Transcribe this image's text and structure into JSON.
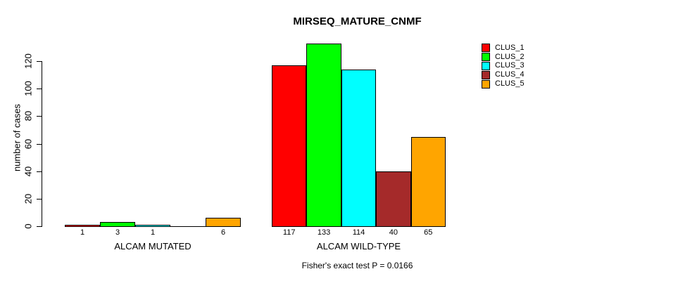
{
  "window": {
    "background": "#ffffff"
  },
  "chart_data": {
    "type": "bar",
    "title": "MIRSEQ_MATURE_CNMF",
    "ylabel": "number of cases",
    "xlabel": "",
    "ylim": [
      0,
      133
    ],
    "yticks": [
      0,
      20,
      40,
      60,
      80,
      100,
      120
    ],
    "grid": false,
    "legend_position": "top-right-outside",
    "categories": [
      "ALCAM MUTATED",
      "ALCAM WILD-TYPE"
    ],
    "series": [
      {
        "name": "CLUS_1",
        "color": "#FF0000",
        "values": [
          1,
          117
        ]
      },
      {
        "name": "CLUS_2",
        "color": "#00FF00",
        "values": [
          3,
          133
        ]
      },
      {
        "name": "CLUS_3",
        "color": "#00FFFF",
        "values": [
          1,
          114
        ]
      },
      {
        "name": "CLUS_4",
        "color": "#A52A2A",
        "values": [
          0,
          40
        ]
      },
      {
        "name": "CLUS_5",
        "color": "#FFA500",
        "values": [
          6,
          65
        ]
      }
    ],
    "bar_value_labels": [
      [
        "1",
        "3",
        "1",
        "",
        "6"
      ],
      [
        "117",
        "133",
        "114",
        "40",
        "65"
      ]
    ],
    "annotation": "Fisher's exact test P = 0.0166",
    "axis_color": "#000000",
    "text_color": "#000000"
  }
}
